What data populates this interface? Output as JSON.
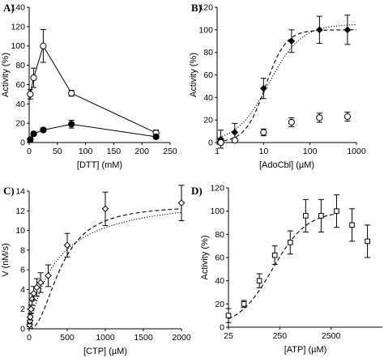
{
  "chart_data": [
    {
      "panel_label": "A)",
      "type": "scatter",
      "xlabel": "[DTT] (mM)",
      "ylabel": "Activity (%)",
      "xlim": [
        0,
        250
      ],
      "ylim": [
        0,
        140
      ],
      "xticks": [
        0,
        50,
        100,
        150,
        200,
        250
      ],
      "yticks": [
        0,
        20,
        40,
        60,
        80,
        100,
        120,
        140
      ],
      "grid": false,
      "series": [
        {
          "marker": "open-circle",
          "line": "solid",
          "points": [
            {
              "x": 2,
              "y": 50,
              "err": 5
            },
            {
              "x": 8,
              "y": 67,
              "err": 10
            },
            {
              "x": 25,
              "y": 100,
              "err": 17
            },
            {
              "x": 75,
              "y": 51,
              "err": 3
            },
            {
              "x": 225,
              "y": 10,
              "err": 3
            }
          ]
        },
        {
          "marker": "filled-circle",
          "line": "solid",
          "points": [
            {
              "x": 2,
              "y": 3,
              "err": 2
            },
            {
              "x": 8,
              "y": 9,
              "err": 2
            },
            {
              "x": 25,
              "y": 13,
              "err": 2
            },
            {
              "x": 75,
              "y": 19,
              "err": 4
            },
            {
              "x": 225,
              "y": 6,
              "err": 2
            }
          ]
        }
      ]
    },
    {
      "panel_label": "B)",
      "type": "scatter",
      "xscale": "log",
      "xlabel": "[AdoCbl] (µM)",
      "ylabel": "Activity (%)",
      "xlim": [
        1,
        1000
      ],
      "ylim": [
        0,
        120
      ],
      "xticks": [
        1,
        10,
        100,
        1000
      ],
      "yticks": [
        0,
        20,
        40,
        60,
        80,
        100,
        120
      ],
      "grid": false,
      "series": [
        {
          "marker": "filled-diamond",
          "line": "none",
          "points": [
            {
              "x": 1.2,
              "y": 3,
              "err": 8
            },
            {
              "x": 2.4,
              "y": 9,
              "err": 8
            },
            {
              "x": 10,
              "y": 48,
              "err": 9
            },
            {
              "x": 40,
              "y": 90,
              "err": 10
            },
            {
              "x": 160,
              "y": 100,
              "err": 12
            },
            {
              "x": 640,
              "y": 100,
              "err": 13
            }
          ]
        },
        {
          "marker": "open-circle",
          "line": "none",
          "points": [
            {
              "x": 1.2,
              "y": 0,
              "err": 2
            },
            {
              "x": 2.4,
              "y": 2,
              "err": 2
            },
            {
              "x": 10,
              "y": 9,
              "err": 3
            },
            {
              "x": 40,
              "y": 18,
              "err": 4
            },
            {
              "x": 160,
              "y": 22,
              "err": 4
            },
            {
              "x": 640,
              "y": 23,
              "err": 4
            }
          ]
        }
      ],
      "fits": [
        {
          "style": "dashed",
          "model": "hill",
          "vmax": 100,
          "k": 11,
          "n": 2.0
        },
        {
          "style": "dotted",
          "model": "hill",
          "vmax": 105,
          "k": 13,
          "n": 1.25
        }
      ]
    },
    {
      "panel_label": "C)",
      "type": "scatter",
      "xlabel": "[CTP] (µM)",
      "ylabel": "V (nM/s)",
      "xlim": [
        0,
        2000
      ],
      "ylim": [
        0,
        14
      ],
      "xticks": [
        0,
        500,
        1000,
        1500,
        2000
      ],
      "yticks": [
        0,
        2,
        4,
        6,
        8,
        10,
        12,
        14
      ],
      "grid": false,
      "series": [
        {
          "marker": "open-diamond",
          "line": "none",
          "points": [
            {
              "x": 5,
              "y": 0.4,
              "err": 0.2
            },
            {
              "x": 10,
              "y": 0.8,
              "err": 0.3
            },
            {
              "x": 15,
              "y": 1.2,
              "err": 0.3
            },
            {
              "x": 25,
              "y": 2.0,
              "err": 0.4
            },
            {
              "x": 40,
              "y": 3.0,
              "err": 0.6
            },
            {
              "x": 60,
              "y": 3.6,
              "err": 0.7
            },
            {
              "x": 100,
              "y": 4.2,
              "err": 0.9
            },
            {
              "x": 150,
              "y": 4.7,
              "err": 1.0
            },
            {
              "x": 250,
              "y": 5.4,
              "err": 1.1
            },
            {
              "x": 500,
              "y": 8.5,
              "err": 1.2
            },
            {
              "x": 1000,
              "y": 12.2,
              "err": 1.7
            },
            {
              "x": 2000,
              "y": 12.8,
              "err": 1.8
            }
          ]
        }
      ],
      "fits": [
        {
          "style": "dashed",
          "model": "hill",
          "vmax": 12.6,
          "k": 420,
          "n": 2.2
        },
        {
          "style": "dotted",
          "model": "hill",
          "vmax": 13.8,
          "k": 360,
          "n": 1.05
        }
      ]
    },
    {
      "panel_label": "D)",
      "type": "scatter",
      "xscale": "log",
      "xlabel": "[ATP] (µM)",
      "ylabel": "Activity (%)",
      "xlim": [
        25,
        25000
      ],
      "ylim": [
        0,
        120
      ],
      "xticks": [
        25,
        250,
        2500
      ],
      "yticks": [
        0,
        20,
        40,
        60,
        80,
        100,
        120
      ],
      "grid": false,
      "series": [
        {
          "marker": "open-square",
          "line": "none",
          "points": [
            {
              "x": 25,
              "y": 10,
              "err": 6
            },
            {
              "x": 50,
              "y": 20,
              "err": 3
            },
            {
              "x": 100,
              "y": 40,
              "err": 6
            },
            {
              "x": 200,
              "y": 62,
              "err": 8
            },
            {
              "x": 400,
              "y": 73,
              "err": 10
            },
            {
              "x": 800,
              "y": 96,
              "err": 14
            },
            {
              "x": 1600,
              "y": 96,
              "err": 14
            },
            {
              "x": 3200,
              "y": 100,
              "err": 14
            },
            {
              "x": 6400,
              "y": 88,
              "err": 14
            },
            {
              "x": 12800,
              "y": 74,
              "err": 14
            }
          ]
        }
      ],
      "fits": [
        {
          "style": "dashed",
          "model": "hill",
          "vmax": 100,
          "k": 180,
          "n": 1.3,
          "xmax": 3200
        }
      ]
    }
  ]
}
